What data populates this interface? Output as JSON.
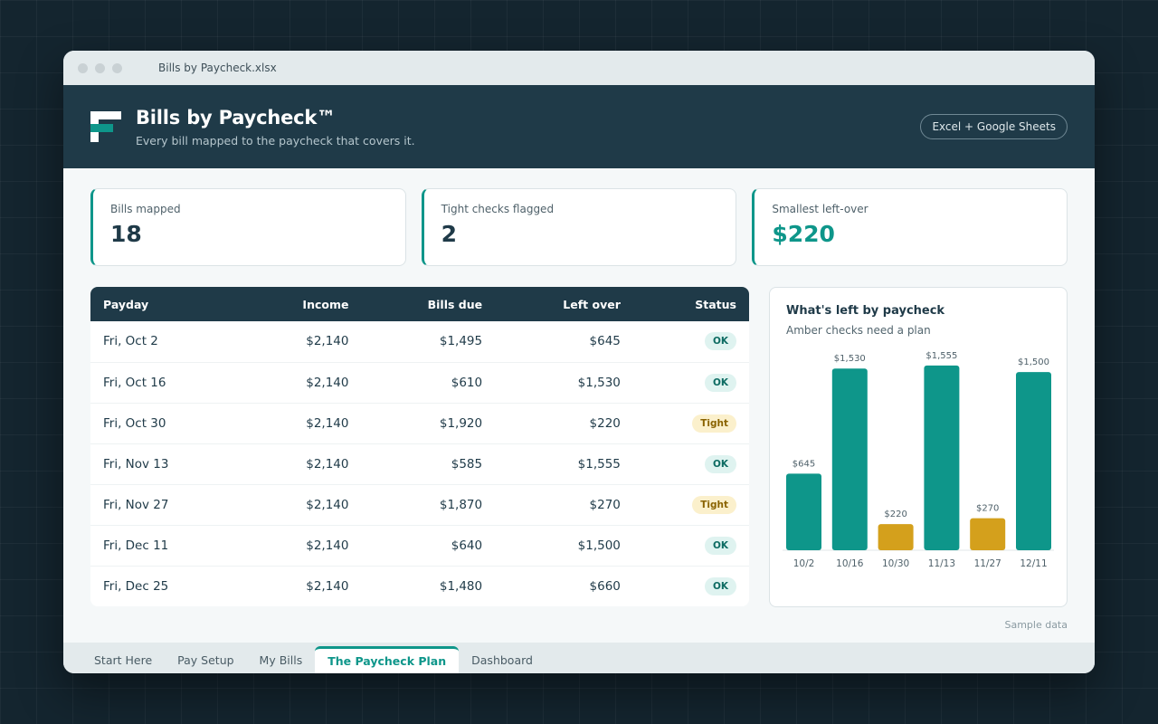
{
  "window": {
    "file_name": "Bills by Paycheck.xlsx"
  },
  "header": {
    "title": "Bills by Paycheck™",
    "subtitle": "Every bill mapped to the paycheck that covers it.",
    "badge": "Excel + Google Sheets"
  },
  "stats": [
    {
      "label": "Bills mapped",
      "value": "18",
      "accent": false
    },
    {
      "label": "Tight checks flagged",
      "value": "2",
      "accent": false
    },
    {
      "label": "Smallest left-over",
      "value": "$220",
      "accent": true
    }
  ],
  "table": {
    "headers": [
      "Payday",
      "Income",
      "Bills due",
      "Left over",
      "Status"
    ],
    "rows": [
      {
        "payday": "Fri, Oct 2",
        "income": "$2,140",
        "bills": "$1,495",
        "left": "$645",
        "status": "OK"
      },
      {
        "payday": "Fri, Oct 16",
        "income": "$2,140",
        "bills": "$610",
        "left": "$1,530",
        "status": "OK"
      },
      {
        "payday": "Fri, Oct 30",
        "income": "$2,140",
        "bills": "$1,920",
        "left": "$220",
        "status": "Tight"
      },
      {
        "payday": "Fri, Nov 13",
        "income": "$2,140",
        "bills": "$585",
        "left": "$1,555",
        "status": "OK"
      },
      {
        "payday": "Fri, Nov 27",
        "income": "$2,140",
        "bills": "$1,870",
        "left": "$270",
        "status": "Tight"
      },
      {
        "payday": "Fri, Dec 11",
        "income": "$2,140",
        "bills": "$640",
        "left": "$1,500",
        "status": "OK"
      },
      {
        "payday": "Fri, Dec 25",
        "income": "$2,140",
        "bills": "$1,480",
        "left": "$660",
        "status": "OK"
      }
    ]
  },
  "colors": {
    "teal": "#0e968a",
    "amber": "#d4a01c",
    "navy": "#1f3a48"
  },
  "chart_data": {
    "type": "bar",
    "title": "What's left by paycheck",
    "subtitle": "Amber checks need a plan",
    "categories": [
      "10/2",
      "10/16",
      "10/30",
      "11/13",
      "11/27",
      "12/11"
    ],
    "values": [
      645,
      1530,
      220,
      1555,
      270,
      1500
    ],
    "value_labels": [
      "$645",
      "$1,530",
      "$220",
      "$1,555",
      "$270",
      "$1,500"
    ],
    "highlight": [
      false,
      false,
      true,
      false,
      true,
      false
    ],
    "ylim": [
      0,
      1600
    ]
  },
  "footnote": "Sample data",
  "tabs": [
    {
      "label": "Start Here",
      "active": false
    },
    {
      "label": "Pay Setup",
      "active": false
    },
    {
      "label": "My Bills",
      "active": false
    },
    {
      "label": "The Paycheck Plan",
      "active": true
    },
    {
      "label": "Dashboard",
      "active": false
    }
  ]
}
